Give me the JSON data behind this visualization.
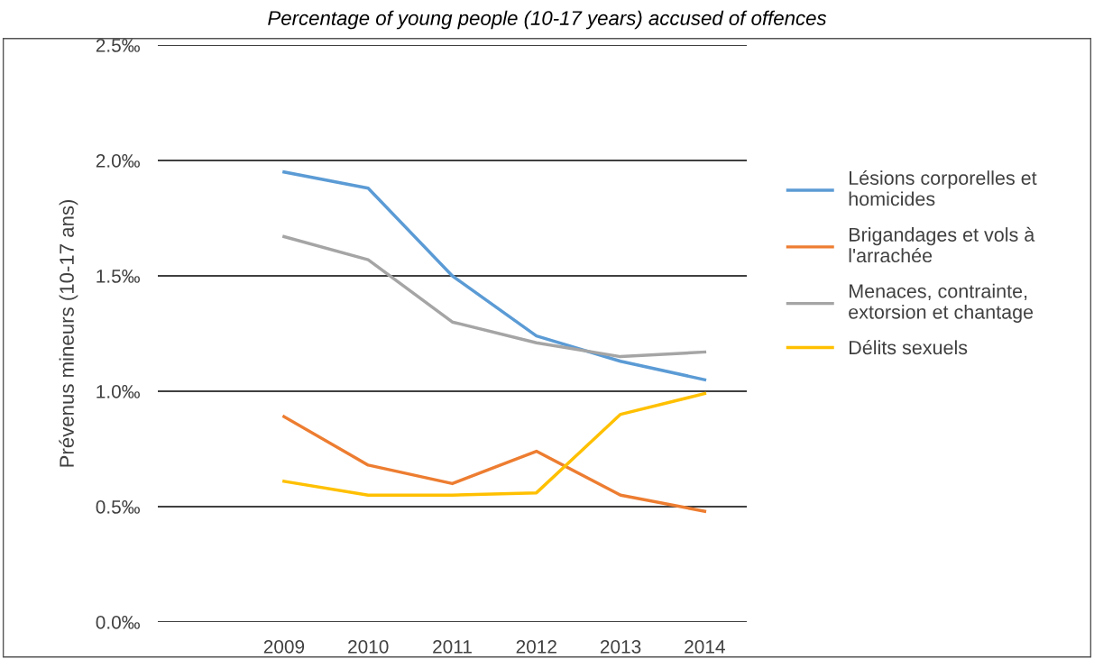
{
  "chart_data": {
    "type": "line",
    "title": "Percentage of young people (10-17 years) accused of offences",
    "ylabel": "Prévenus mineurs (10-17 ans)",
    "categories": [
      "2009",
      "2010",
      "2011",
      "2012",
      "2013",
      "2014"
    ],
    "series": [
      {
        "name": "Lésions corporelles et homicides",
        "color": "#5b9bd5",
        "values": [
          1.95,
          1.88,
          1.5,
          1.24,
          1.13,
          1.05
        ]
      },
      {
        "name": "Brigandages et vols à l'arrachée",
        "color": "#ed7d31",
        "values": [
          0.89,
          0.68,
          0.6,
          0.74,
          0.55,
          0.48
        ]
      },
      {
        "name": "Menaces, contrainte, extorsion et chantage",
        "color": "#a5a5a5",
        "values": [
          1.67,
          1.57,
          1.3,
          1.21,
          1.15,
          1.17
        ]
      },
      {
        "name": "Délits sexuels",
        "color": "#ffc000",
        "values": [
          0.61,
          0.55,
          0.55,
          0.56,
          0.9,
          0.99
        ]
      }
    ],
    "ylim": [
      0,
      2.5
    ],
    "yticks": [
      {
        "value": 0,
        "label": "0.0‰"
      },
      {
        "value": 0.5,
        "label": "0.5‰"
      },
      {
        "value": 1.0,
        "label": "1.0‰"
      },
      {
        "value": 1.5,
        "label": "1.5‰"
      },
      {
        "value": 2.0,
        "label": "2.0‰"
      },
      {
        "value": 2.5,
        "label": "2.5‰"
      }
    ],
    "grid": "y",
    "legend": "right",
    "marker": "none",
    "line_style": "solid"
  }
}
